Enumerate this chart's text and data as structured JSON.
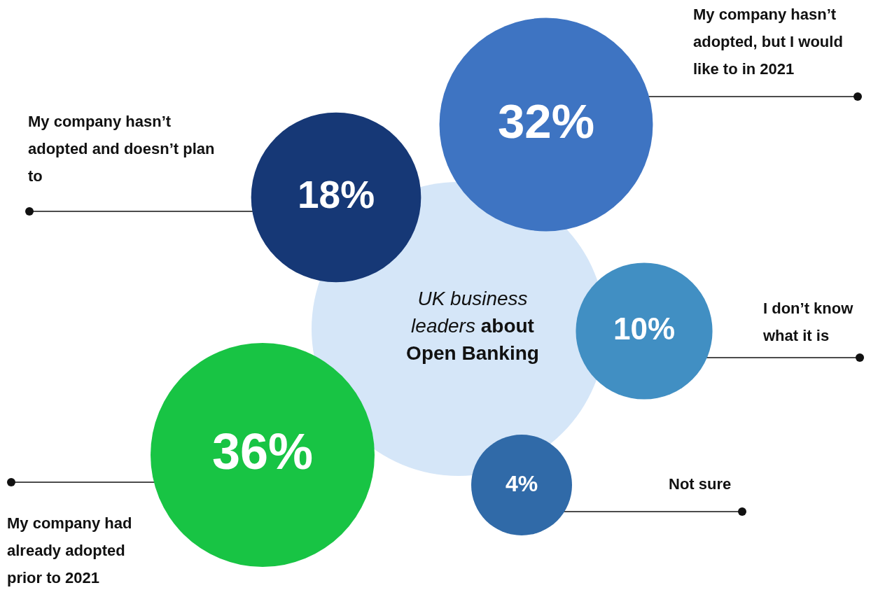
{
  "chart_data": {
    "type": "other",
    "title": "UK business leaders about Open Banking",
    "categories": [
      "My company hasn’t adopted and doesn’t plan to",
      "My company hasn’t adopted, but I would like to in 2021",
      "I don’t know what it is",
      "Not sure",
      "My company had already adopted prior to 2021"
    ],
    "values": [
      18,
      32,
      10,
      4,
      36
    ],
    "value_labels": [
      "18%",
      "32%",
      "10%",
      "4%",
      "36%"
    ],
    "colors": [
      "#163876",
      "#3e74c2",
      "#418fc3",
      "#306aa8",
      "#18c444"
    ]
  }
}
